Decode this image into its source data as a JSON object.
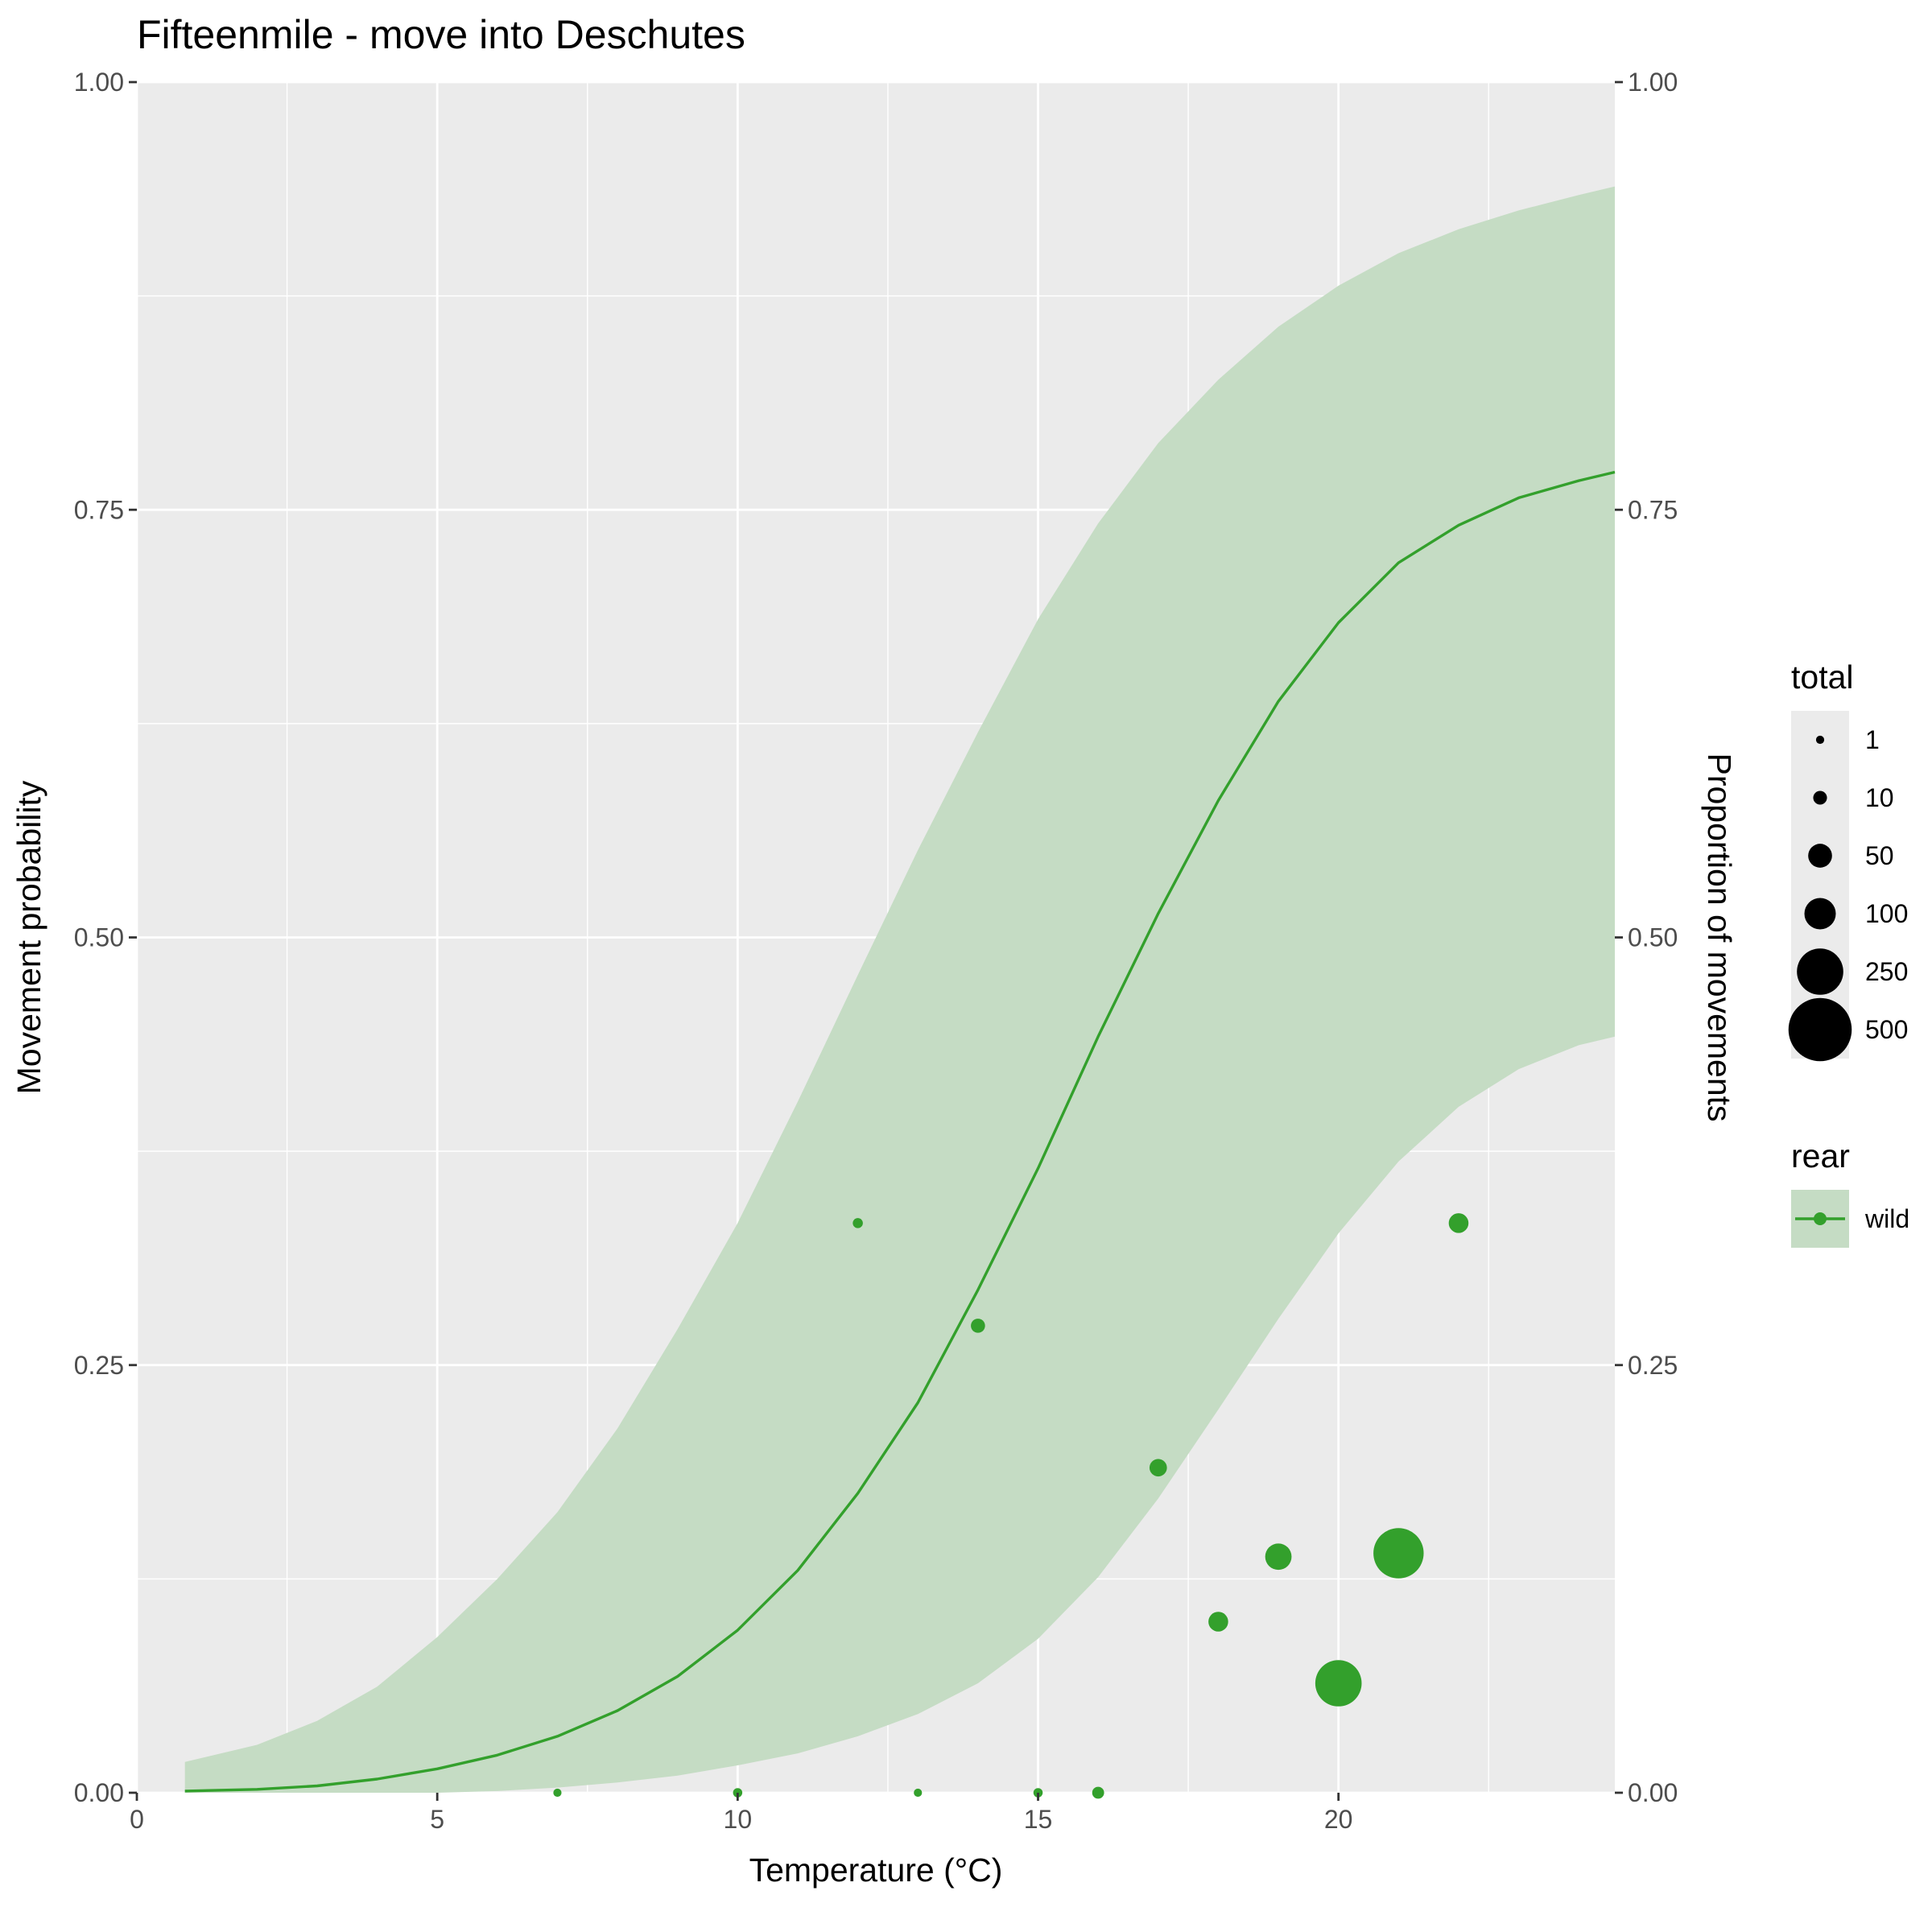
{
  "chart_data": {
    "type": "scatter",
    "title": "Fifteenmile - move into Deschutes",
    "xlabel": "Temperature (°C)",
    "ylabel": "Movement probability",
    "ylabel_right": "Proportion of movements",
    "xlim": [
      0,
      24.6
    ],
    "ylim": [
      0,
      1
    ],
    "x_ticks": [
      0,
      5,
      10,
      15,
      20
    ],
    "y_ticks": [
      0.0,
      0.25,
      0.5,
      0.75,
      1.0
    ],
    "y_tick_labels": [
      "0.00",
      "0.25",
      "0.50",
      "0.75",
      "1.00"
    ],
    "grid": true,
    "legend_position": "right",
    "colors": {
      "series": "#33a02c",
      "ribbon": "#c5dcc4",
      "panel": "#ebebeb",
      "grid": "#ffffff"
    },
    "series": [
      {
        "name": "wild",
        "fit_line": {
          "x": [
            0.8,
            2,
            3,
            4,
            5,
            6,
            7,
            8,
            9,
            10,
            11,
            12,
            13,
            14,
            15,
            16,
            17,
            18,
            19,
            20,
            21,
            22,
            23,
            24,
            24.6
          ],
          "y": [
            0.001,
            0.002,
            0.004,
            0.008,
            0.014,
            0.022,
            0.033,
            0.048,
            0.068,
            0.095,
            0.13,
            0.175,
            0.228,
            0.294,
            0.365,
            0.442,
            0.514,
            0.58,
            0.638,
            0.684,
            0.719,
            0.741,
            0.757,
            0.767,
            0.772
          ]
        },
        "ribbon_upper": [
          0.018,
          0.028,
          0.042,
          0.062,
          0.091,
          0.125,
          0.164,
          0.213,
          0.271,
          0.333,
          0.404,
          0.478,
          0.551,
          0.62,
          0.686,
          0.742,
          0.789,
          0.826,
          0.857,
          0.881,
          0.9,
          0.914,
          0.925,
          0.934,
          0.939
        ],
        "ribbon_lower": [
          0.0,
          0.0,
          0.0,
          0.0,
          0.0,
          0.001,
          0.003,
          0.006,
          0.01,
          0.016,
          0.023,
          0.033,
          0.046,
          0.064,
          0.09,
          0.126,
          0.172,
          0.224,
          0.277,
          0.327,
          0.369,
          0.401,
          0.423,
          0.437,
          0.442
        ],
        "points": [
          {
            "x": 7,
            "y": 0.0,
            "total": 1
          },
          {
            "x": 10,
            "y": 0.0,
            "total": 2
          },
          {
            "x": 12,
            "y": 0.333,
            "total": 3
          },
          {
            "x": 13,
            "y": 0.0,
            "total": 1
          },
          {
            "x": 14,
            "y": 0.273,
            "total": 11
          },
          {
            "x": 15,
            "y": 0.0,
            "total": 2
          },
          {
            "x": 16,
            "y": 0.0,
            "total": 6
          },
          {
            "x": 17,
            "y": 0.19,
            "total": 21
          },
          {
            "x": 18,
            "y": 0.1,
            "total": 30
          },
          {
            "x": 19,
            "y": 0.138,
            "total": 65
          },
          {
            "x": 20,
            "y": 0.064,
            "total": 250
          },
          {
            "x": 21,
            "y": 0.14,
            "total": 300
          },
          {
            "x": 22,
            "y": 0.333,
            "total": 30
          }
        ]
      }
    ],
    "legend": {
      "size_title": "total",
      "size_entries": [
        {
          "label": "1",
          "value": 1
        },
        {
          "label": "10",
          "value": 10
        },
        {
          "label": "50",
          "value": 50
        },
        {
          "label": "100",
          "value": 100
        },
        {
          "label": "250",
          "value": 250
        },
        {
          "label": "500",
          "value": 500
        }
      ],
      "color_title": "rear",
      "color_entries": [
        {
          "label": "wild"
        }
      ]
    }
  }
}
